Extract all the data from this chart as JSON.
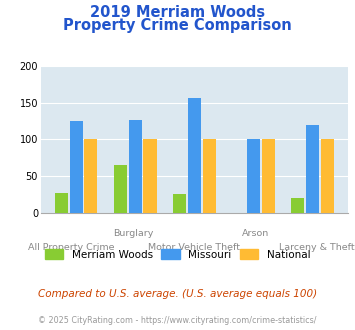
{
  "title_line1": "2019 Merriam Woods",
  "title_line2": "Property Crime Comparison",
  "title_color": "#2255cc",
  "groups": [
    "All Property Crime",
    "Burglary",
    "Motor Vehicle Theft",
    "Arson",
    "Larceny & Theft"
  ],
  "merriam_woods": [
    27,
    65,
    26,
    0,
    20
  ],
  "missouri": [
    125,
    127,
    157,
    100,
    120
  ],
  "national": [
    100,
    100,
    100,
    100,
    100
  ],
  "color_mw": "#88cc33",
  "color_mo": "#4499ee",
  "color_nat": "#ffbb33",
  "ylim": [
    0,
    200
  ],
  "yticks": [
    0,
    50,
    100,
    150,
    200
  ],
  "background_color": "#dce8f0",
  "legend_labels": [
    "Merriam Woods",
    "Missouri",
    "National"
  ],
  "top_labels": [
    [
      "Burglary",
      1
    ],
    [
      "Arson",
      3
    ]
  ],
  "bottom_labels": [
    [
      "All Property Crime",
      0
    ],
    [
      "Motor Vehicle Theft",
      2
    ],
    [
      "Larceny & Theft",
      4
    ]
  ],
  "footnote1": "Compared to U.S. average. (U.S. average equals 100)",
  "footnote2": "© 2025 CityRating.com - https://www.cityrating.com/crime-statistics/",
  "footnote1_color": "#cc4400",
  "footnote2_color": "#999999"
}
